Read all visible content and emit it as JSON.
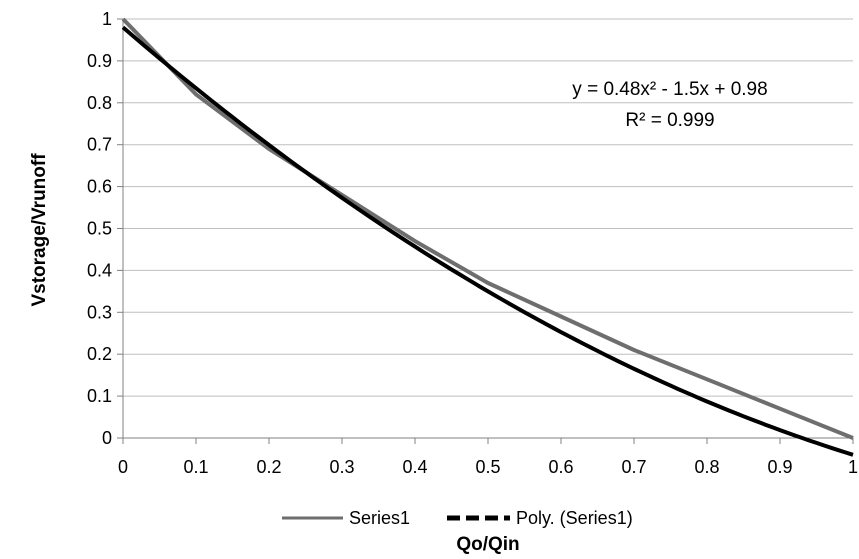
{
  "chart_data": {
    "type": "line",
    "xlabel": "Qo/Qin",
    "ylabel": "Vstorage/Vrunoff",
    "xlim": [
      0,
      1
    ],
    "ylim": [
      0,
      1
    ],
    "x_ticks": [
      "0",
      "0.1",
      "0.2",
      "0.3",
      "0.4",
      "0.5",
      "0.6",
      "0.7",
      "0.8",
      "0.9",
      "1"
    ],
    "y_ticks": [
      "0",
      "0.1",
      "0.2",
      "0.3",
      "0.4",
      "0.5",
      "0.6",
      "0.7",
      "0.8",
      "0.9",
      "1"
    ],
    "grid": "horizontal",
    "legend_position": "bottom",
    "series": [
      {
        "name": "Series1",
        "color": "#6e6e6e",
        "x": [
          0,
          0.1,
          0.2,
          0.3,
          0.4,
          0.5,
          0.6,
          0.7,
          0.8,
          0.9,
          1
        ],
        "y": [
          1.0,
          0.82,
          0.69,
          0.58,
          0.47,
          0.37,
          0.29,
          0.21,
          0.14,
          0.07,
          0.0
        ]
      },
      {
        "name": "Poly. (Series1)",
        "color": "#000000",
        "style": "dashed",
        "trendline": {
          "type": "polynomial",
          "coefficients": [
            0.48,
            -1.5,
            0.98
          ]
        }
      }
    ],
    "annotations": {
      "equation": "y = 0.48x² - 1.5x + 0.98",
      "r_squared": "R² = 0.999"
    }
  }
}
